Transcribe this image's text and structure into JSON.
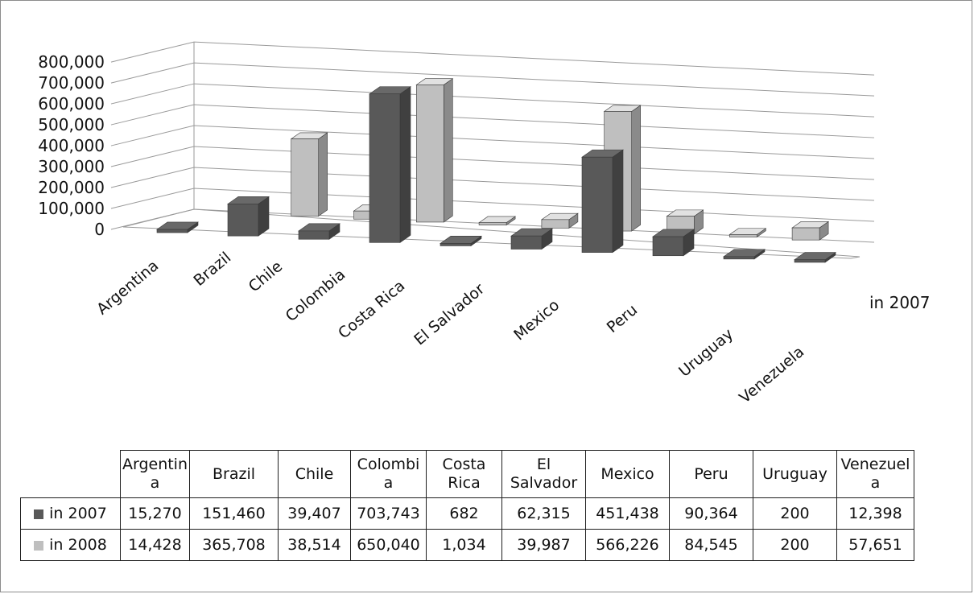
{
  "chart_data": {
    "type": "bar",
    "subtype": "3d-clustered-column",
    "categories": [
      "Argentina",
      "Brazil",
      "Chile",
      "Colombia",
      "Costa Rica",
      "El Salvador",
      "Mexico",
      "Peru",
      "Uruguay",
      "Venezuela"
    ],
    "series": [
      {
        "name": "in 2007",
        "color": "#595959",
        "values": [
          15270,
          151460,
          39407,
          703743,
          682,
          62315,
          451438,
          90364,
          200,
          12398
        ]
      },
      {
        "name": "in 2008",
        "color": "#bfbfbf",
        "values": [
          14428,
          365708,
          38514,
          650040,
          1034,
          39987,
          566226,
          84545,
          200,
          57651
        ]
      }
    ],
    "y_ticks": [
      "800,000",
      "700,000",
      "600,000",
      "500,000",
      "400,000",
      "300,000",
      "200,000",
      "100,000",
      "0"
    ],
    "ylim": [
      0,
      800000
    ],
    "depth_axis_label": "in 2007",
    "grid": true,
    "legend": "data-table"
  },
  "table": {
    "header": [
      [
        "Argentin",
        "a"
      ],
      [
        "Brazil"
      ],
      [
        "Chile"
      ],
      [
        "Colombi",
        "a"
      ],
      [
        "Costa",
        "Rica"
      ],
      [
        "El",
        "Salvador"
      ],
      [
        "Mexico"
      ],
      [
        "Peru"
      ],
      [
        "Uruguay"
      ],
      [
        "Venezuel",
        "a"
      ]
    ],
    "rows": [
      {
        "label": "in 2007",
        "color": "#595959",
        "values": [
          "15,270",
          "151,460",
          "39,407",
          "703,743",
          "682",
          "62,315",
          "451,438",
          "90,364",
          "200",
          "12,398"
        ]
      },
      {
        "label": "in 2008",
        "color": "#bfbfbf",
        "values": [
          "14,428",
          "365,708",
          "38,514",
          "650,040",
          "1,034",
          "39,987",
          "566,226",
          "84,545",
          "200",
          "57,651"
        ]
      }
    ]
  }
}
